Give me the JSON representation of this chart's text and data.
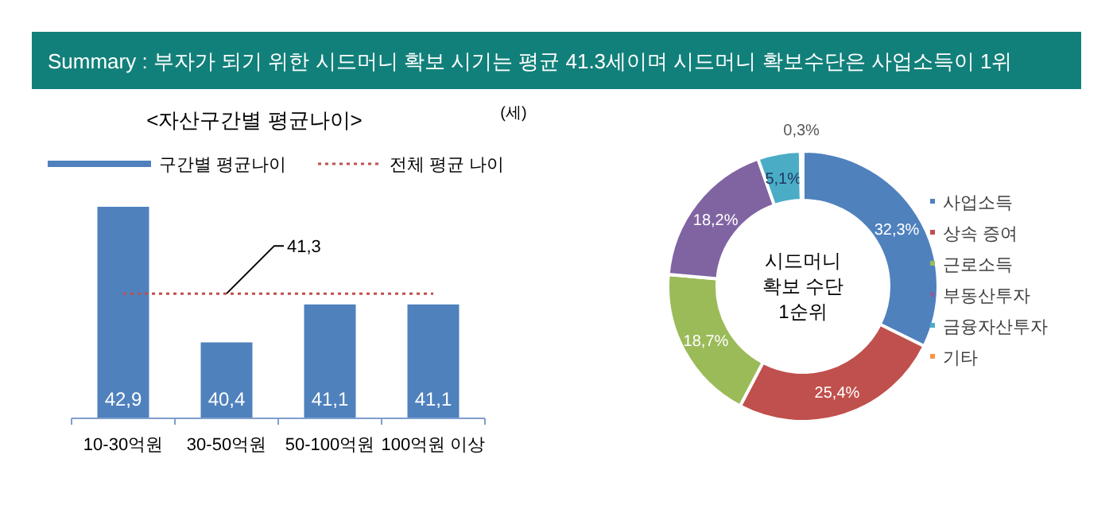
{
  "chart_data": [
    {
      "type": "bar",
      "title": "Summary :  부자가 되기 위한 시드머니 확보 시기는 평균 41.3세이며 시드머니 확보수단은 사업소득이 1위",
      "subtitle": "<자산구간별 평균나이>",
      "annotations": [
        "(세)",
        {
          "text": "41,3",
          "x": "30-50억원",
          "y": 41.3
        }
      ],
      "categories": [
        "10-30억원",
        "30-50억원",
        "50-100억원",
        "100억원 이상"
      ],
      "series": [
        {
          "name": "구간별 평균나이",
          "color": "#4f81bd",
          "values": [
            42.9,
            40.4,
            41.1,
            41.1
          ],
          "value_labels": [
            "42,9",
            "40,4",
            "41,1",
            "41,1"
          ]
        },
        {
          "name": "전체 평균 나이",
          "type": "line",
          "color": "#c0504d",
          "line_style": "dotted",
          "values": [
            41.3,
            41.3,
            41.3,
            41.3
          ]
        }
      ],
      "ylim": [
        39,
        42.9
      ],
      "tick_labels": "x",
      "legend": "top"
    },
    {
      "type": "donut",
      "categories": [
        "사업소득",
        "상속 증여",
        "근로소득",
        "부동산투자",
        "금융자산투자",
        "기타"
      ],
      "values": [
        32.3,
        25.4,
        18.7,
        18.2,
        5.1,
        0.3
      ],
      "colors": [
        "#4f81bd",
        "#c0504d",
        "#9bbb59",
        "#8064a2",
        "#4bacc6",
        "#f79646"
      ],
      "value_labels": [
        "32,3%",
        "25,4%",
        "18,7%",
        "18,2%",
        "5,1%",
        "0,3%"
      ],
      "annotations": [
        "시드머니\n확보 수단\n1순위"
      ],
      "legend": "right"
    }
  ]
}
